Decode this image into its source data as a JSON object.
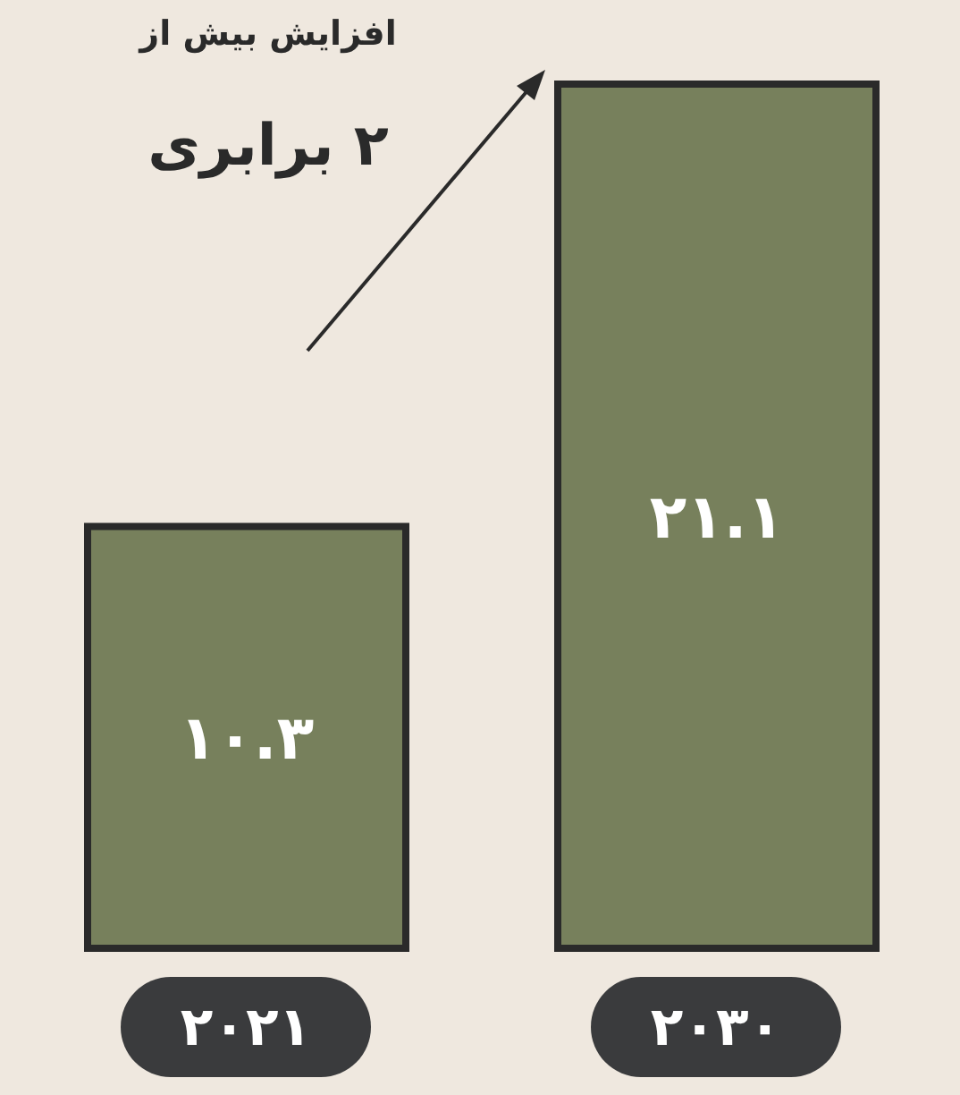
{
  "chart_data": {
    "type": "bar",
    "categories": [
      "۲۰۲۱",
      "۲۰۳۰"
    ],
    "values": [
      10.3,
      21.1
    ],
    "color": "#77805c",
    "value_labels": [
      "۱۰.۳",
      "۲۱.۱"
    ],
    "annotations": [
      "افزایش بیش از",
      "۲ برابری"
    ]
  }
}
